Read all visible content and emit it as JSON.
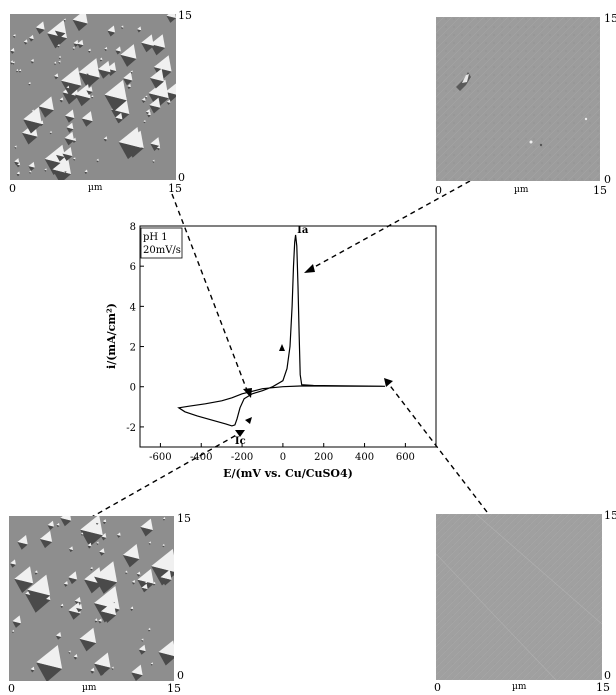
{
  "chart_data": {
    "type": "line",
    "title": "",
    "xlabel": "E/(mV vs. Cu/CuSO4)",
    "ylabel": "i/(mA/cm²)",
    "xlim": [
      -700,
      750
    ],
    "ylim": [
      -3,
      8
    ],
    "xticks": [
      -600,
      -400,
      -200,
      0,
      200,
      400,
      600
    ],
    "yticks": [
      -2,
      0,
      2,
      4,
      6,
      8
    ],
    "grid": false,
    "legend_box": [
      "pH 1",
      "20mV/s"
    ],
    "annotations": [
      {
        "text": "Ia",
        "x": 60,
        "y": 7.55
      },
      {
        "text": "Ic",
        "x": -235,
        "y": -2.45
      }
    ],
    "series": [
      {
        "points": [
          [
            500,
            0.02
          ],
          [
            300,
            0.03
          ],
          [
            100,
            0.04
          ],
          [
            0,
            0.0
          ],
          [
            -100,
            -0.1
          ],
          [
            -200,
            -0.35
          ],
          [
            -250,
            -0.55
          ],
          [
            -300,
            -0.7
          ],
          [
            -380,
            -0.85
          ],
          [
            -460,
            -0.97
          ],
          [
            -510,
            -1.05
          ],
          [
            -480,
            -1.25
          ],
          [
            -420,
            -1.45
          ],
          [
            -350,
            -1.65
          ],
          [
            -280,
            -1.85
          ],
          [
            -250,
            -1.95
          ],
          [
            -235,
            -1.9
          ],
          [
            -225,
            -1.6
          ],
          [
            -210,
            -1.05
          ],
          [
            -190,
            -0.6
          ],
          [
            -150,
            -0.35
          ],
          [
            -100,
            -0.2
          ],
          [
            -50,
            0.0
          ],
          [
            0,
            0.3
          ],
          [
            20,
            0.9
          ],
          [
            35,
            2.0
          ],
          [
            45,
            4.0
          ],
          [
            52,
            6.0
          ],
          [
            58,
            7.2
          ],
          [
            62,
            7.55
          ],
          [
            68,
            7.0
          ],
          [
            74,
            5.0
          ],
          [
            80,
            2.5
          ],
          [
            85,
            0.6
          ],
          [
            92,
            0.1
          ],
          [
            150,
            0.06
          ],
          [
            300,
            0.04
          ],
          [
            500,
            0.02
          ]
        ]
      }
    ]
  },
  "afm_images": [
    {
      "id": "top-left",
      "x_min": "0",
      "x_max": "15",
      "y_min": "0",
      "y_max": "15",
      "unit": "µm"
    },
    {
      "id": "top-right",
      "x_min": "0",
      "x_max": "15",
      "y_min": "0",
      "y_max": "15",
      "unit": "µm"
    },
    {
      "id": "bottom-left",
      "x_min": "0",
      "x_max": "15",
      "y_min": "0",
      "y_max": "15",
      "unit": "µm"
    },
    {
      "id": "bottom-right",
      "x_min": "0",
      "x_max": "15",
      "y_min": "0",
      "y_max": "15",
      "unit": "µm"
    }
  ],
  "colors": {
    "afm_background": "#8a8a8a",
    "afm_smooth": "#9a9a9a",
    "crystal_light": "#f2f2f2",
    "crystal_dark": "#4a4a4a",
    "curve": "#000000"
  }
}
